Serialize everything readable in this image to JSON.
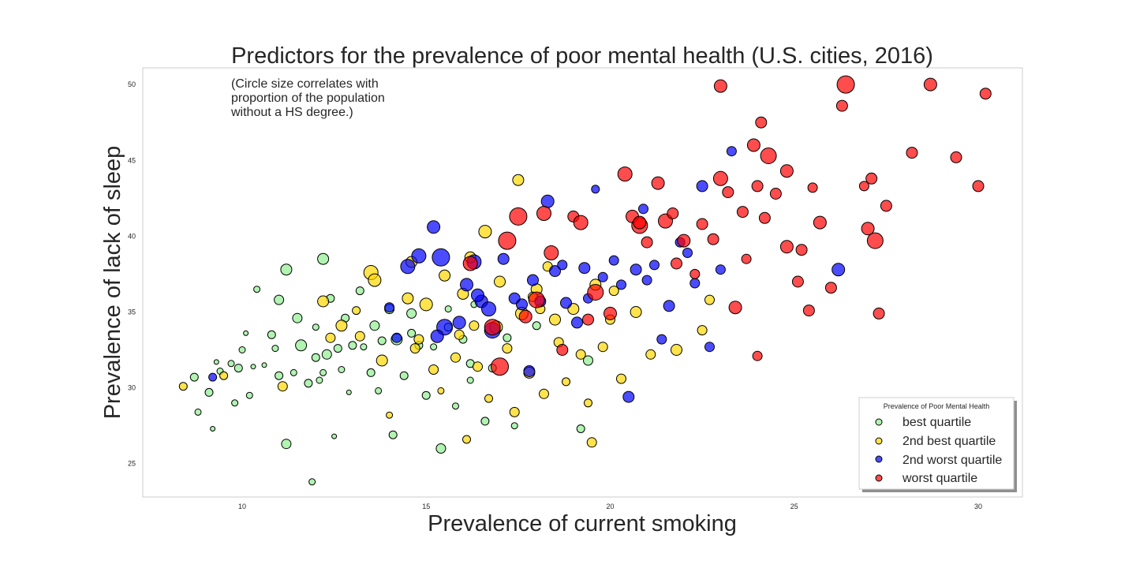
{
  "chart_data": {
    "type": "scatter",
    "title": "Predictors for the prevalence of poor mental health (U.S. cities, 2016)",
    "xlabel": "Prevalence of current smoking",
    "ylabel": "Prevalence of lack of sleep",
    "xlim": [
      7.3,
      31.2
    ],
    "ylim": [
      22.8,
      51.1
    ],
    "xticks": [
      10,
      15,
      20,
      25,
      30
    ],
    "yticks": [
      25,
      30,
      35,
      40,
      45,
      50
    ],
    "grid": false,
    "annotation": [
      "(Circle size correlates with",
      "proportion of the population",
      "without a HS degree.)"
    ],
    "size_encoding": "proportion of the population without a HS degree",
    "legend": {
      "title": "Prevalence of Poor Mental Health",
      "placement": "lower-right"
    },
    "series": [
      {
        "name": "best quartile",
        "color": "#90ee90",
        "points": [
          [
            8.7,
            30.7,
            5
          ],
          [
            8.8,
            28.4,
            4
          ],
          [
            9.1,
            29.7,
            5
          ],
          [
            9.2,
            27.3,
            3
          ],
          [
            9.3,
            31.7,
            3
          ],
          [
            9.4,
            31.1,
            4
          ],
          [
            9.7,
            31.6,
            4
          ],
          [
            9.8,
            29.0,
            4
          ],
          [
            9.9,
            31.3,
            5
          ],
          [
            10.0,
            32.5,
            4
          ],
          [
            10.1,
            33.6,
            3
          ],
          [
            10.2,
            29.5,
            4
          ],
          [
            10.3,
            31.4,
            3
          ],
          [
            10.4,
            36.5,
            4
          ],
          [
            10.6,
            31.5,
            3
          ],
          [
            10.8,
            33.5,
            5
          ],
          [
            10.9,
            32.6,
            4
          ],
          [
            11.0,
            30.8,
            5
          ],
          [
            11.0,
            35.8,
            6
          ],
          [
            11.2,
            37.8,
            7
          ],
          [
            11.2,
            26.3,
            6
          ],
          [
            11.4,
            31.0,
            4
          ],
          [
            11.5,
            34.6,
            6
          ],
          [
            11.6,
            32.8,
            7
          ],
          [
            11.8,
            30.3,
            5
          ],
          [
            11.9,
            23.8,
            4
          ],
          [
            12.0,
            34.0,
            4
          ],
          [
            12.1,
            30.5,
            4
          ],
          [
            12.2,
            38.5,
            7
          ],
          [
            12.3,
            32.2,
            6
          ],
          [
            12.4,
            35.9,
            5
          ],
          [
            12.5,
            26.8,
            3
          ],
          [
            12.6,
            32.6,
            5
          ],
          [
            12.7,
            31.2,
            4
          ],
          [
            12.8,
            34.6,
            5
          ],
          [
            12.9,
            29.7,
            3
          ],
          [
            13.0,
            32.8,
            5
          ],
          [
            13.2,
            36.4,
            5
          ],
          [
            13.3,
            32.7,
            4
          ],
          [
            13.5,
            31.0,
            5
          ],
          [
            13.6,
            34.1,
            6
          ],
          [
            13.7,
            29.8,
            4
          ],
          [
            13.8,
            33.1,
            5
          ],
          [
            14.0,
            35.2,
            6
          ],
          [
            14.1,
            26.9,
            5
          ],
          [
            14.2,
            33.2,
            7
          ],
          [
            14.4,
            30.8,
            5
          ],
          [
            14.6,
            34.9,
            6
          ],
          [
            14.8,
            32.8,
            5
          ],
          [
            15.0,
            29.5,
            5
          ],
          [
            15.2,
            32.7,
            4
          ],
          [
            15.4,
            26.0,
            6
          ],
          [
            15.6,
            34.0,
            5
          ],
          [
            15.8,
            28.8,
            4
          ],
          [
            16.0,
            33.2,
            5
          ],
          [
            16.2,
            31.6,
            5
          ],
          [
            16.3,
            35.5,
            4
          ],
          [
            16.6,
            27.8,
            5
          ],
          [
            16.8,
            31.3,
            5
          ],
          [
            17.2,
            33.3,
            5
          ],
          [
            17.4,
            27.5,
            4
          ],
          [
            18.0,
            34.1,
            5
          ],
          [
            19.2,
            27.3,
            5
          ],
          [
            19.4,
            31.8,
            6
          ],
          [
            12.0,
            32.0,
            5
          ],
          [
            14.6,
            33.6,
            5
          ],
          [
            12.2,
            31.0,
            4
          ],
          [
            15.6,
            35.2,
            4
          ],
          [
            16.2,
            30.5,
            4
          ]
        ]
      },
      {
        "name": "2nd best quartile",
        "color": "#ffd700",
        "points": [
          [
            8.4,
            30.1,
            5
          ],
          [
            9.5,
            30.8,
            5
          ],
          [
            11.1,
            30.1,
            6
          ],
          [
            12.2,
            35.7,
            7
          ],
          [
            12.4,
            33.3,
            6
          ],
          [
            12.7,
            34.1,
            7
          ],
          [
            13.2,
            33.4,
            6
          ],
          [
            13.5,
            37.6,
            9
          ],
          [
            13.6,
            37.1,
            8
          ],
          [
            13.8,
            31.8,
            7
          ],
          [
            14.0,
            28.2,
            4
          ],
          [
            14.5,
            35.9,
            7
          ],
          [
            14.6,
            38.3,
            7
          ],
          [
            14.8,
            33.2,
            6
          ],
          [
            15.0,
            35.5,
            8
          ],
          [
            15.2,
            31.2,
            6
          ],
          [
            15.4,
            29.8,
            4
          ],
          [
            15.5,
            37.4,
            7
          ],
          [
            15.8,
            32.0,
            6
          ],
          [
            16.0,
            36.2,
            7
          ],
          [
            16.1,
            26.6,
            5
          ],
          [
            16.2,
            38.6,
            7
          ],
          [
            16.4,
            31.4,
            6
          ],
          [
            16.6,
            40.3,
            8
          ],
          [
            16.7,
            29.3,
            5
          ],
          [
            16.9,
            34.0,
            8
          ],
          [
            17.0,
            37.0,
            7
          ],
          [
            17.2,
            32.6,
            6
          ],
          [
            17.5,
            43.7,
            7
          ],
          [
            17.6,
            34.9,
            8
          ],
          [
            17.8,
            31.0,
            7
          ],
          [
            18.0,
            36.5,
            7
          ],
          [
            18.2,
            29.6,
            6
          ],
          [
            18.3,
            38.0,
            6
          ],
          [
            18.5,
            34.5,
            7
          ],
          [
            18.6,
            33.0,
            6
          ],
          [
            18.8,
            30.4,
            5
          ],
          [
            19.0,
            35.2,
            7
          ],
          [
            19.2,
            32.2,
            6
          ],
          [
            19.4,
            29.0,
            5
          ],
          [
            19.6,
            36.8,
            7
          ],
          [
            19.8,
            32.7,
            6
          ],
          [
            20.1,
            36.4,
            6
          ],
          [
            20.3,
            30.6,
            6
          ],
          [
            20.7,
            35.0,
            7
          ],
          [
            21.1,
            32.2,
            6
          ],
          [
            21.8,
            32.5,
            7
          ],
          [
            22.5,
            33.8,
            6
          ],
          [
            22.7,
            35.8,
            6
          ],
          [
            17.4,
            28.4,
            6
          ],
          [
            15.9,
            33.5,
            6
          ],
          [
            14.7,
            32.6,
            6
          ],
          [
            17.9,
            36.0,
            6
          ],
          [
            19.5,
            26.4,
            6
          ],
          [
            20.0,
            34.5,
            6
          ],
          [
            13.1,
            35.1,
            5
          ],
          [
            16.3,
            34.1,
            6
          ],
          [
            18.1,
            35.2,
            6
          ]
        ]
      },
      {
        "name": "2nd worst quartile",
        "color": "#0000ff",
        "points": [
          [
            9.2,
            30.7,
            5
          ],
          [
            14.0,
            35.3,
            6
          ],
          [
            14.5,
            38.0,
            9
          ],
          [
            14.8,
            38.7,
            9
          ],
          [
            15.2,
            40.6,
            8
          ],
          [
            15.4,
            38.6,
            11
          ],
          [
            15.5,
            34.0,
            10
          ],
          [
            15.9,
            34.3,
            8
          ],
          [
            16.1,
            36.8,
            8
          ],
          [
            16.3,
            38.3,
            9
          ],
          [
            16.5,
            35.7,
            8
          ],
          [
            16.7,
            35.2,
            9
          ],
          [
            16.8,
            33.8,
            10
          ],
          [
            17.1,
            38.5,
            7
          ],
          [
            17.4,
            35.9,
            7
          ],
          [
            17.6,
            35.5,
            7
          ],
          [
            17.9,
            37.1,
            7
          ],
          [
            18.1,
            35.7,
            7
          ],
          [
            18.3,
            42.3,
            8
          ],
          [
            18.5,
            37.7,
            7
          ],
          [
            18.8,
            35.6,
            7
          ],
          [
            19.1,
            34.3,
            7
          ],
          [
            19.3,
            37.9,
            7
          ],
          [
            19.6,
            43.1,
            5
          ],
          [
            19.8,
            37.3,
            6
          ],
          [
            20.1,
            38.4,
            6
          ],
          [
            20.3,
            36.8,
            6
          ],
          [
            20.5,
            29.4,
            7
          ],
          [
            20.7,
            37.8,
            7
          ],
          [
            20.9,
            41.8,
            6
          ],
          [
            21.2,
            38.1,
            6
          ],
          [
            21.4,
            33.2,
            6
          ],
          [
            21.6,
            35.4,
            7
          ],
          [
            21.9,
            39.6,
            6
          ],
          [
            22.1,
            38.9,
            6
          ],
          [
            22.3,
            36.9,
            6
          ],
          [
            22.5,
            43.3,
            7
          ],
          [
            22.7,
            32.7,
            6
          ],
          [
            23.0,
            37.8,
            6
          ],
          [
            23.3,
            45.6,
            6
          ],
          [
            26.2,
            37.8,
            8
          ],
          [
            15.3,
            33.4,
            8
          ],
          [
            16.4,
            36.1,
            8
          ],
          [
            14.2,
            33.3,
            6
          ],
          [
            19.4,
            35.9,
            6
          ],
          [
            17.8,
            31.1,
            7
          ],
          [
            18.7,
            38.1,
            6
          ],
          [
            21.0,
            37.1,
            6
          ]
        ]
      },
      {
        "name": "worst quartile",
        "color": "#ff0000",
        "points": [
          [
            16.2,
            38.2,
            9
          ],
          [
            16.8,
            34.0,
            10
          ],
          [
            17.0,
            31.4,
            11
          ],
          [
            17.2,
            39.7,
            11
          ],
          [
            17.5,
            41.3,
            11
          ],
          [
            17.7,
            34.7,
            8
          ],
          [
            18.0,
            35.8,
            10
          ],
          [
            18.2,
            41.5,
            9
          ],
          [
            18.4,
            38.9,
            9
          ],
          [
            18.7,
            32.5,
            7
          ],
          [
            19.0,
            41.3,
            7
          ],
          [
            19.2,
            40.9,
            9
          ],
          [
            19.6,
            36.3,
            10
          ],
          [
            20.0,
            34.9,
            8
          ],
          [
            20.4,
            44.1,
            9
          ],
          [
            20.6,
            41.3,
            8
          ],
          [
            20.8,
            40.7,
            10
          ],
          [
            21.0,
            39.6,
            7
          ],
          [
            21.3,
            43.5,
            8
          ],
          [
            21.5,
            41.0,
            9
          ],
          [
            21.8,
            38.2,
            7
          ],
          [
            22.0,
            39.7,
            8
          ],
          [
            22.3,
            37.5,
            6
          ],
          [
            22.5,
            40.8,
            7
          ],
          [
            22.8,
            39.8,
            7
          ],
          [
            23.0,
            49.9,
            8
          ],
          [
            23.0,
            43.8,
            9
          ],
          [
            23.2,
            42.9,
            7
          ],
          [
            23.4,
            35.3,
            8
          ],
          [
            23.6,
            41.6,
            7
          ],
          [
            23.9,
            46.0,
            8
          ],
          [
            24.0,
            43.3,
            7
          ],
          [
            24.0,
            32.1,
            6
          ],
          [
            24.1,
            47.5,
            7
          ],
          [
            24.2,
            41.2,
            7
          ],
          [
            24.3,
            45.3,
            10
          ],
          [
            24.5,
            42.8,
            7
          ],
          [
            24.8,
            44.3,
            8
          ],
          [
            25.1,
            37.0,
            7
          ],
          [
            25.2,
            39.1,
            7
          ],
          [
            25.5,
            43.2,
            6
          ],
          [
            25.4,
            35.1,
            7
          ],
          [
            25.7,
            40.9,
            8
          ],
          [
            26.0,
            36.6,
            7
          ],
          [
            26.3,
            48.6,
            7
          ],
          [
            26.4,
            50.0,
            11
          ],
          [
            26.9,
            43.3,
            6
          ],
          [
            27.0,
            40.5,
            8
          ],
          [
            27.1,
            43.8,
            7
          ],
          [
            27.2,
            39.7,
            10
          ],
          [
            27.3,
            34.9,
            7
          ],
          [
            27.5,
            42.0,
            7
          ],
          [
            28.2,
            45.5,
            7
          ],
          [
            28.7,
            50.0,
            8
          ],
          [
            29.4,
            45.2,
            7
          ],
          [
            30.0,
            43.3,
            7
          ],
          [
            30.2,
            49.4,
            7
          ],
          [
            20.8,
            40.9,
            8
          ],
          [
            19.4,
            34.5,
            7
          ],
          [
            21.7,
            41.5,
            7
          ],
          [
            23.7,
            38.5,
            6
          ],
          [
            24.8,
            39.3,
            8
          ]
        ]
      }
    ]
  }
}
